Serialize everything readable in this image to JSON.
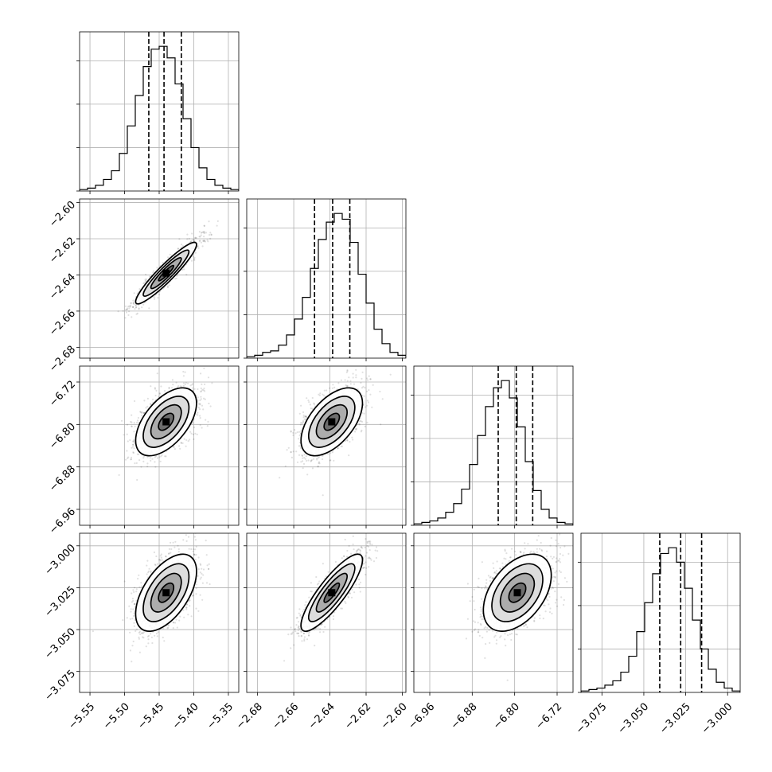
{
  "chart_data": {
    "type": "corner",
    "parameters": [
      {
        "range": [
          -5.565,
          -5.335
        ],
        "ticks": [
          -5.55,
          -5.5,
          -5.45,
          -5.4,
          -5.35
        ],
        "tick_labels": [
          "−5.55",
          "−5.50",
          "−5.45",
          "−5.40",
          "−5.35"
        ],
        "mean": -5.44,
        "sd": 0.022,
        "quantiles": [
          -5.465,
          -5.443,
          -5.418
        ],
        "hist_edges": [
          -5.565,
          -5.335
        ],
        "hist_counts": [
          0.01,
          0.02,
          0.04,
          0.08,
          0.14,
          0.26,
          0.45,
          0.66,
          0.86,
          0.98,
          1.0,
          0.92,
          0.74,
          0.5,
          0.3,
          0.16,
          0.08,
          0.04,
          0.02,
          0.01
        ]
      },
      {
        "range": [
          -2.686,
          -2.598
        ],
        "ticks": [
          -2.68,
          -2.66,
          -2.64,
          -2.62,
          -2.6
        ],
        "tick_labels": [
          "−2.68",
          "−2.66",
          "−2.64",
          "−2.62",
          "−2.60"
        ],
        "mean": -2.639,
        "sd": 0.0085,
        "quantiles": [
          -2.6485,
          -2.6385,
          -2.629
        ],
        "hist_edges": [
          -2.686,
          -2.598
        ],
        "hist_counts": [
          0.01,
          0.02,
          0.04,
          0.05,
          0.09,
          0.16,
          0.27,
          0.42,
          0.62,
          0.82,
          0.94,
          1.0,
          0.96,
          0.8,
          0.58,
          0.38,
          0.2,
          0.1,
          0.04,
          0.02
        ]
      },
      {
        "range": [
          -6.99,
          -6.69
        ],
        "ticks": [
          -6.96,
          -6.88,
          -6.8,
          -6.72
        ],
        "tick_labels": [
          "−6.96",
          "−6.88",
          "−6.80",
          "−6.72"
        ],
        "mean": -6.795,
        "sd": 0.032,
        "quantiles": [
          -6.831,
          -6.797,
          -6.766
        ],
        "hist_edges": [
          -6.99,
          -6.69
        ],
        "hist_counts": [
          0.01,
          0.02,
          0.03,
          0.05,
          0.09,
          0.15,
          0.25,
          0.42,
          0.62,
          0.82,
          0.95,
          1.0,
          0.88,
          0.68,
          0.44,
          0.24,
          0.11,
          0.05,
          0.02,
          0.01
        ]
      },
      {
        "range": [
          -3.0875,
          -2.9925
        ],
        "ticks": [
          -3.075,
          -3.05,
          -3.025,
          -3.0
        ],
        "tick_labels": [
          "−3.075",
          "−3.050",
          "−3.025",
          "−3.000"
        ],
        "mean": -3.028,
        "sd": 0.0115,
        "quantiles": [
          -3.0405,
          -3.028,
          -3.0155
        ],
        "hist_edges": [
          -3.0875,
          -2.9925
        ],
        "hist_counts": [
          0.01,
          0.02,
          0.03,
          0.05,
          0.08,
          0.14,
          0.25,
          0.42,
          0.62,
          0.82,
          0.96,
          1.0,
          0.9,
          0.72,
          0.5,
          0.3,
          0.16,
          0.07,
          0.03,
          0.01
        ]
      }
    ],
    "correlations": {
      "1,0": 0.93,
      "2,0": 0.55,
      "2,1": 0.55,
      "3,0": 0.55,
      "3,1": 0.85,
      "3,2": 0.45
    },
    "contour_levels_sigma": [
      0.5,
      1.0,
      1.5,
      2.0
    ],
    "grid": true,
    "colors": {
      "line": "#000000",
      "points": "#000000",
      "grid": "#b0b0b0"
    }
  }
}
